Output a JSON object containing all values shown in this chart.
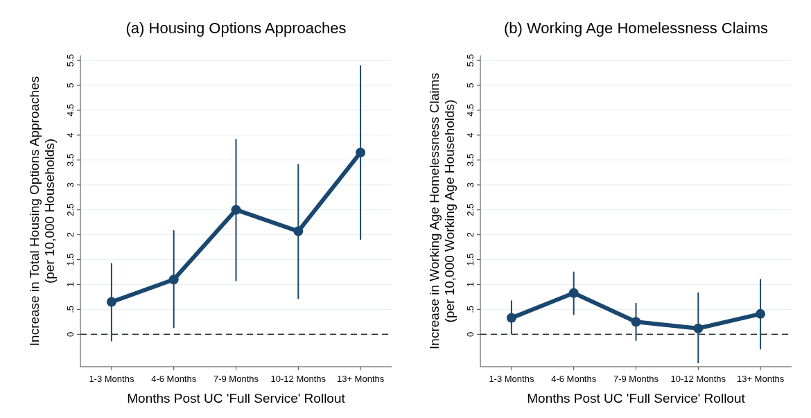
{
  "chart_data": [
    {
      "type": "line",
      "title": "(a) Housing Options Approaches",
      "xlabel": "Months Post UC 'Full Service' Rollout",
      "ylabel": "Increase in Total Housing Options Approaches\n(per 10,000 Households)",
      "categories": [
        "1-3 Months",
        "4-6 Months",
        "7-9 Months",
        "10-12 Months",
        "13+ Months"
      ],
      "series": [
        {
          "color": "#1a476f",
          "values": [
            0.65,
            1.1,
            2.5,
            2.07,
            3.65
          ],
          "errors": [
            [
              -0.14,
              1.43
            ],
            [
              0.13,
              2.09
            ],
            [
              1.07,
              3.92
            ],
            [
              0.71,
              3.42
            ],
            [
              1.9,
              5.4
            ]
          ]
        }
      ],
      "ylim": [
        -0.65,
        5.6
      ],
      "yticks": [
        0,
        {
          "value": 0.5,
          "label": ".5"
        },
        1,
        1.5,
        2,
        2.5,
        3,
        3.5,
        4,
        4.5,
        5,
        5.5
      ],
      "ref_lines": [
        {
          "axis": "y",
          "value": 0,
          "line_style": "dashed",
          "color": "#333333"
        }
      ],
      "grid": "y",
      "marker": "circle",
      "line_style": "solid"
    },
    {
      "type": "line",
      "title": "(b) Working Age Homelessness Claims",
      "xlabel": "Months Post UC 'Full Service' Rollout",
      "ylabel": "Increase in Working Age Homelessness Claims\n(per 10,000 Working Age Households)",
      "categories": [
        "1-3 Months",
        "4-6 Months",
        "7-9 Months",
        "10-12 Months",
        "13+ Months"
      ],
      "series": [
        {
          "color": "#1a476f",
          "values": [
            0.33,
            0.83,
            0.25,
            0.12,
            0.41
          ],
          "errors": [
            [
              0.0,
              0.68
            ],
            [
              0.39,
              1.26
            ],
            [
              -0.13,
              0.63
            ],
            [
              -0.58,
              0.84
            ],
            [
              -0.3,
              1.11
            ]
          ]
        }
      ],
      "ylim": [
        -0.65,
        5.6
      ],
      "yticks": [
        0,
        {
          "value": 0.5,
          "label": ".5"
        },
        1,
        1.5,
        2,
        2.5,
        3,
        3.5,
        4,
        4.5,
        5,
        5.5
      ],
      "ref_lines": [
        {
          "axis": "y",
          "value": 0,
          "line_style": "dashed",
          "color": "#333333"
        }
      ],
      "grid": "y",
      "marker": "circle",
      "line_style": "solid"
    }
  ]
}
